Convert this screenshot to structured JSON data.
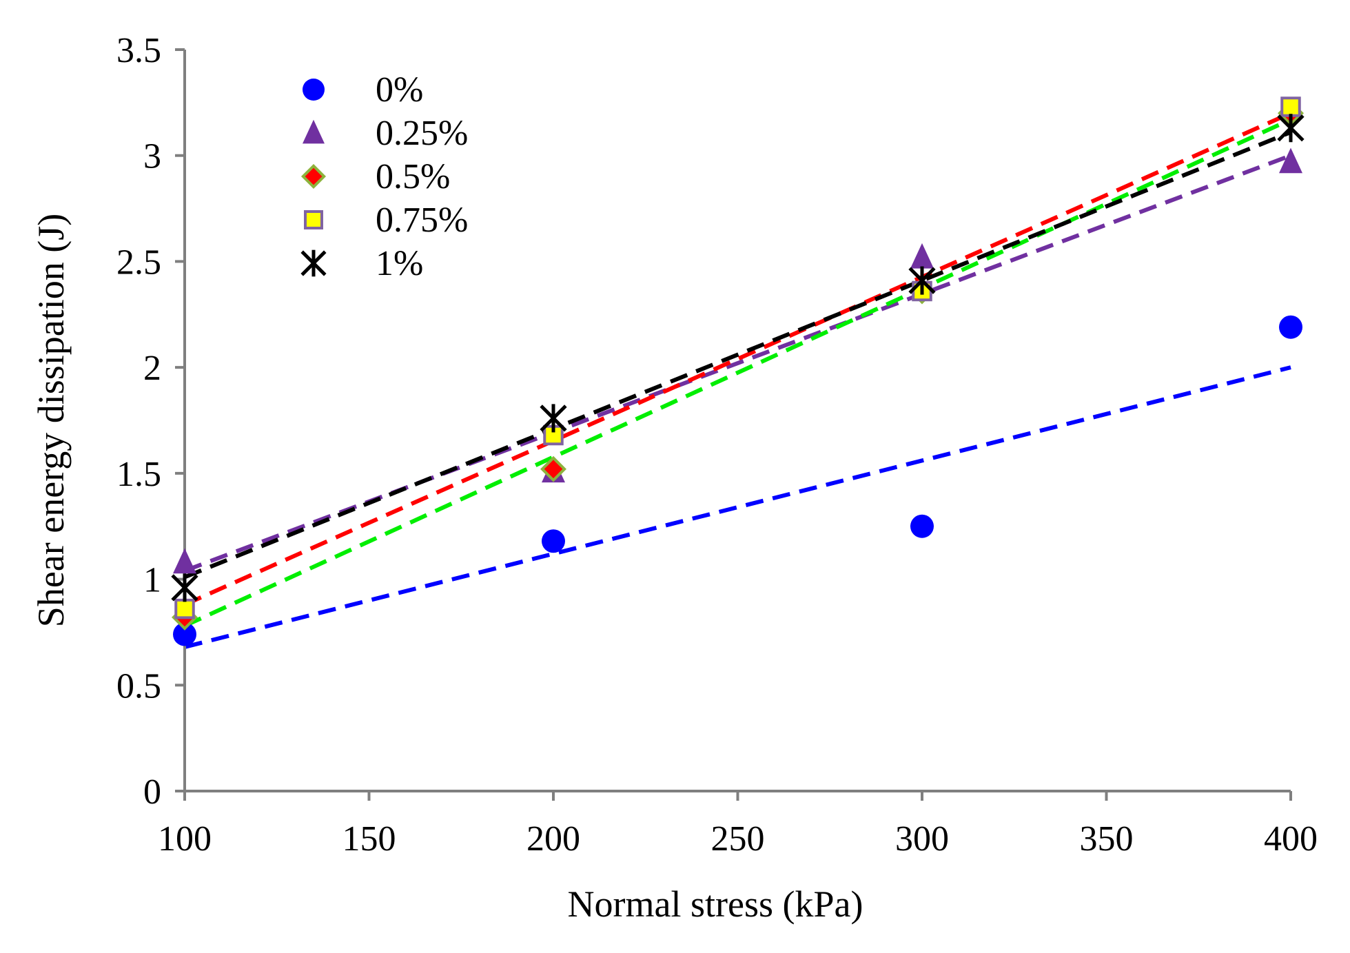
{
  "chart_data": {
    "type": "scatter",
    "title": "",
    "xlabel": "Normal stress (kPa)",
    "ylabel": "Shear energy dissipation (J)",
    "xlim": [
      100,
      400
    ],
    "ylim": [
      0,
      3.5
    ],
    "xticks": [
      100,
      150,
      200,
      250,
      300,
      350,
      400
    ],
    "yticks": [
      0,
      0.5,
      1,
      1.5,
      2,
      2.5,
      3,
      3.5
    ],
    "xtick_labels": [
      "100",
      "150",
      "200",
      "250",
      "300",
      "350",
      "400"
    ],
    "ytick_labels": [
      "0",
      "0.5",
      "1",
      "1.5",
      "2",
      "2.5",
      "3",
      "3.5"
    ],
    "grid": false,
    "legend_position": "top-left",
    "series": [
      {
        "name": "0%",
        "marker": "circle",
        "color": "#0000ff",
        "edge_color": "#0000ff",
        "trend_color": "#0000ff",
        "x": [
          100,
          200,
          300,
          400
        ],
        "y": [
          0.74,
          1.18,
          1.25,
          2.19
        ],
        "trend": [
          [
            100,
            0.68
          ],
          [
            400,
            2.0
          ]
        ]
      },
      {
        "name": "0.25%",
        "marker": "triangle",
        "color": "#7030a0",
        "edge_color": "#7030a0",
        "trend_color": "#7030a0",
        "x": [
          100,
          200,
          300,
          400
        ],
        "y": [
          1.08,
          1.51,
          2.52,
          2.97
        ],
        "trend": [
          [
            100,
            1.04
          ],
          [
            400,
            3.0
          ]
        ]
      },
      {
        "name": "0.5%",
        "marker": "diamond",
        "color": "#ff0000",
        "edge_color": "#8db33c",
        "trend_color": "#ff0000",
        "x": [
          100,
          200,
          300,
          400
        ],
        "y": [
          0.82,
          1.52,
          2.36,
          3.2
        ],
        "trend": [
          [
            100,
            0.88
          ],
          [
            400,
            3.2
          ]
        ]
      },
      {
        "name": "0.75%",
        "marker": "square",
        "color": "#ffff00",
        "edge_color": "#8064a2",
        "trend_color": "#00ee00",
        "x": [
          100,
          200,
          300,
          400
        ],
        "y": [
          0.86,
          1.68,
          2.36,
          3.23
        ],
        "trend": [
          [
            100,
            0.78
          ],
          [
            400,
            3.17
          ]
        ]
      },
      {
        "name": "1%",
        "marker": "asterisk",
        "color": "#000000",
        "edge_color": "#000000",
        "trend_color": "#000000",
        "x": [
          100,
          200,
          300,
          400
        ],
        "y": [
          0.96,
          1.76,
          2.41,
          3.13
        ],
        "trend": [
          [
            100,
            1.01
          ],
          [
            400,
            3.11
          ]
        ]
      }
    ]
  }
}
